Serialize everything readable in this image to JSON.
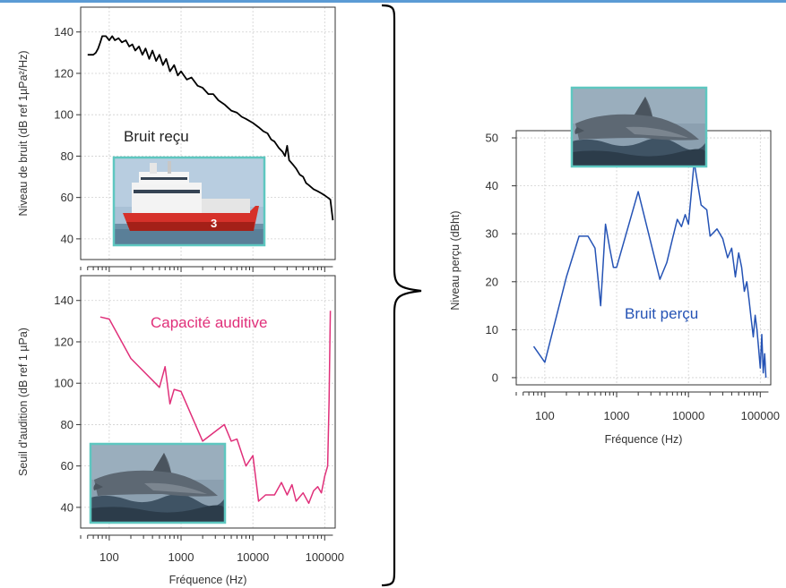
{
  "colors": {
    "noise": "#000000",
    "hearing": "#e0307a",
    "perceived": "#2553b5",
    "photo_frame": "#5ec7c0",
    "grid": "#d0d0d0",
    "frame": "#333333",
    "brace": "#000000",
    "top_bar": "#5b9bd5"
  },
  "icons": [
    "ship-photo",
    "dolphin-photo",
    "dolphin-photo-2",
    "curly-brace"
  ],
  "chart_data": [
    {
      "id": "noise",
      "type": "line",
      "ylabel": "Niveau de bruit (dB ref 1µPa²/Hz)",
      "xlabel": "",
      "annotation": "Bruit reçu",
      "x_scale": "log",
      "xlim": [
        40,
        140000
      ],
      "ylim": [
        30,
        152
      ],
      "y_ticks": [
        "40",
        "60",
        "80",
        "100",
        "120",
        "140"
      ],
      "x_ticks": [],
      "x": [
        50,
        60,
        65,
        70,
        75,
        80,
        90,
        100,
        110,
        120,
        135,
        150,
        170,
        190,
        210,
        230,
        260,
        290,
        320,
        360,
        400,
        450,
        500,
        560,
        620,
        700,
        800,
        900,
        1000,
        1200,
        1400,
        1700,
        2000,
        2400,
        2800,
        3300,
        4000,
        5000,
        6000,
        7000,
        8000,
        10000,
        12000,
        14000,
        16000,
        18000,
        20000,
        23000,
        26000,
        28000,
        30000,
        32000,
        36000,
        40000,
        45000,
        50000,
        55000,
        60000,
        70000,
        80000,
        90000,
        100000,
        110000,
        120000,
        130000
      ],
      "values": [
        129,
        129,
        130,
        132,
        135,
        138,
        138,
        136,
        138,
        136,
        137,
        135,
        136,
        133,
        134,
        131,
        133,
        129,
        132,
        127,
        131,
        126,
        129,
        124,
        127,
        121,
        124,
        119,
        121,
        117,
        118,
        114,
        113,
        110,
        110,
        107,
        105,
        102,
        101,
        99,
        98,
        96,
        94,
        92,
        91,
        88,
        87,
        84,
        82,
        80,
        85,
        78,
        76,
        74,
        71,
        70,
        67,
        66,
        64,
        63,
        62,
        61,
        60,
        59,
        49
      ]
    },
    {
      "id": "hearing",
      "type": "line",
      "ylabel": "Seuil d'audition (dB ref 1 µPa)",
      "xlabel": "Fréquence (Hz)",
      "annotation": "Capacité auditive",
      "x_scale": "log",
      "xlim": [
        40,
        140000
      ],
      "ylim": [
        30,
        152
      ],
      "y_ticks": [
        "40",
        "60",
        "80",
        "100",
        "120",
        "140"
      ],
      "x_ticks": [
        "100",
        "1000",
        "10000",
        "100000"
      ],
      "x": [
        75,
        100,
        200,
        500,
        600,
        700,
        800,
        1000,
        2000,
        4000,
        5000,
        6000,
        8000,
        10000,
        12000,
        15000,
        20000,
        25000,
        30000,
        35000,
        40000,
        50000,
        60000,
        70000,
        80000,
        90000,
        100000,
        110000,
        115000,
        118000,
        120000
      ],
      "values": [
        132,
        131,
        112,
        98,
        108,
        90,
        97,
        96,
        72,
        80,
        72,
        73,
        60,
        65,
        43,
        46,
        46,
        52,
        46,
        51,
        43,
        47,
        42,
        48,
        50,
        47,
        55,
        60,
        92,
        120,
        135
      ]
    },
    {
      "id": "perceived",
      "type": "line",
      "ylabel": "Niveau perçu (dBht)",
      "xlabel": "Fréquence (Hz)",
      "annotation": "Bruit perçu",
      "x_scale": "log",
      "xlim": [
        40,
        140000
      ],
      "ylim": [
        -1.5,
        51.5
      ],
      "y_ticks": [
        "0",
        "10",
        "20",
        "30",
        "40",
        "50"
      ],
      "x_ticks": [
        "100",
        "1000",
        "10000",
        "100000"
      ],
      "x": [
        70,
        100,
        200,
        300,
        400,
        500,
        600,
        700,
        800,
        900,
        1000,
        2000,
        4000,
        5000,
        6000,
        7000,
        8000,
        9000,
        10000,
        12000,
        15000,
        18000,
        20000,
        25000,
        30000,
        35000,
        40000,
        45000,
        50000,
        55000,
        60000,
        65000,
        70000,
        75000,
        80000,
        85000,
        90000,
        95000,
        100000,
        105000,
        110000,
        115000,
        120000
      ],
      "values": [
        6.5,
        3.2,
        21,
        29.5,
        29.5,
        27,
        15,
        32,
        27,
        23,
        23,
        38.8,
        20.5,
        24,
        29,
        33,
        31.5,
        34,
        32,
        45,
        36,
        35,
        29.5,
        31,
        29,
        25,
        27,
        21,
        26,
        23,
        18,
        20,
        16,
        12,
        8.5,
        13,
        10,
        6,
        2,
        9,
        1,
        5,
        0
      ]
    }
  ]
}
